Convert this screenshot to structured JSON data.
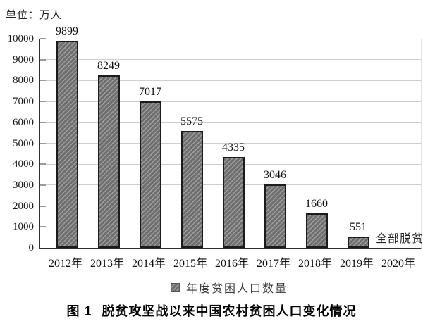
{
  "unit_label": "单位：万人",
  "chart_data": {
    "type": "bar",
    "title": "脱贫攻坚战以来中国农村贫困人口变化情况",
    "categories": [
      "2012年",
      "2013年",
      "2014年",
      "2015年",
      "2016年",
      "2017年",
      "2018年",
      "2019年",
      "2020年"
    ],
    "values": [
      9899,
      8249,
      7017,
      5575,
      4335,
      3046,
      1660,
      551,
      null
    ],
    "annotations": [
      {
        "category": "2020年",
        "text": "全部脱贫"
      }
    ],
    "unit": "万人",
    "ylim": [
      0,
      10000
    ],
    "yticks": [
      0,
      1000,
      2000,
      3000,
      4000,
      5000,
      6000,
      7000,
      8000,
      9000,
      10000
    ],
    "grid": "horizontal",
    "legend_position": "bottom-center",
    "legend": [
      {
        "label": "年度贫困人口数量",
        "swatch": "hatched-dark-gray-square"
      }
    ],
    "colors": {
      "bar_fill": "#6e6e6e",
      "bar_hatch": "#9d9d9d",
      "bar_border": "#1c1c1c",
      "gridline": "#cfcfcf",
      "axis": "#2f2f2f",
      "text": "#1a1a1a"
    }
  },
  "caption": {
    "figure_label": "图 1",
    "text": "脱贫攻坚战以来中国农村贫困人口变化情况"
  }
}
